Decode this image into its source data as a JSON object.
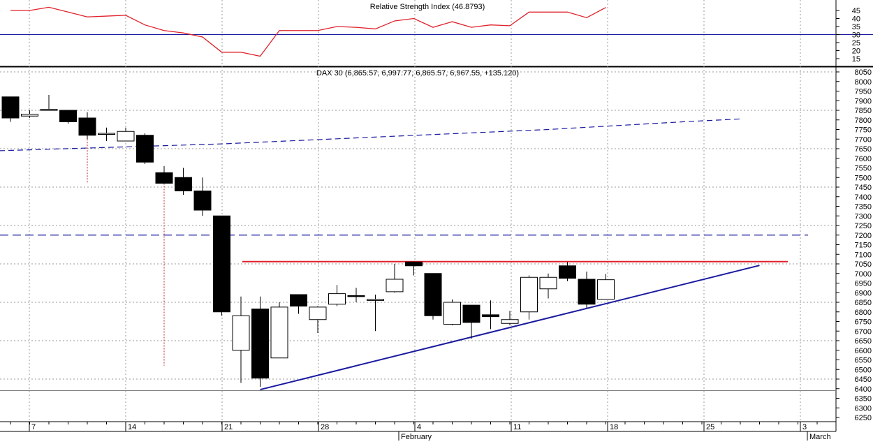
{
  "rsi_panel": {
    "title": "Relative Strength Index (46.8793)",
    "ticks": [
      45,
      40,
      35,
      30,
      25,
      20,
      15
    ],
    "ylim": [
      8,
      52
    ],
    "reference_level": 30,
    "line_color": "#e0202a",
    "reference_color": "#1a1aa0",
    "values": [
      45,
      45,
      47,
      44,
      41,
      41.5,
      42,
      36,
      32.5,
      31,
      28.5,
      19,
      19,
      16.5,
      32.5,
      32.5,
      32.5,
      35,
      34.5,
      33.5,
      38.5,
      40,
      34.5,
      38,
      34.5,
      36,
      35.5,
      44,
      44,
      44,
      40.5,
      46.8793
    ]
  },
  "chart_data": {
    "type": "candlestick",
    "title": "DAX 30 (6,865.57, 6,997.77, 6,865.57, 6,967.55, +135.120)",
    "ylabel": "",
    "xlabel": "",
    "ylim": [
      6220,
      8070
    ],
    "y_ticks": [
      8050,
      8000,
      7950,
      7900,
      7850,
      7800,
      7750,
      7700,
      7650,
      7600,
      7550,
      7500,
      7450,
      7400,
      7350,
      7300,
      7250,
      7200,
      7150,
      7100,
      7050,
      7000,
      6950,
      6900,
      6850,
      6800,
      6750,
      6700,
      6650,
      6600,
      6550,
      6500,
      6450,
      6400,
      6350,
      6300,
      6250
    ],
    "x_date_labels": [
      "7",
      "14",
      "21",
      "28",
      "4",
      "11",
      "18",
      "25",
      "3"
    ],
    "month_labels": [
      "February",
      "March"
    ],
    "up_color": "#ffffff",
    "down_color": "#000000",
    "candles": [
      {
        "open": 7920,
        "high": 7920,
        "low": 7790,
        "close": 7810
      },
      {
        "open": 7820,
        "high": 7850,
        "low": 7810,
        "close": 7830
      },
      {
        "open": 7855,
        "high": 7930,
        "low": 7850,
        "close": 7855
      },
      {
        "open": 7850,
        "high": 7850,
        "low": 7780,
        "close": 7790
      },
      {
        "open": 7810,
        "high": 7840,
        "low": 7700,
        "close": 7720
      },
      {
        "open": 7730,
        "high": 7760,
        "low": 7690,
        "close": 7730
      },
      {
        "open": 7690,
        "high": 7760,
        "low": 7690,
        "close": 7740
      },
      {
        "open": 7720,
        "high": 7730,
        "low": 7570,
        "close": 7580
      },
      {
        "open": 7525,
        "high": 7560,
        "low": 7470,
        "close": 7470
      },
      {
        "open": 7500,
        "high": 7550,
        "low": 7410,
        "close": 7430
      },
      {
        "open": 7430,
        "high": 7500,
        "low": 7300,
        "close": 7330
      },
      {
        "open": 7300,
        "high": 7300,
        "low": 6780,
        "close": 6800
      },
      {
        "open": 6600,
        "high": 6880,
        "low": 6430,
        "close": 6780
      },
      {
        "open": 6815,
        "high": 6880,
        "low": 6410,
        "close": 6455
      },
      {
        "open": 6560,
        "high": 6850,
        "low": 6560,
        "close": 6825
      },
      {
        "open": 6890,
        "high": 6890,
        "low": 6790,
        "close": 6830
      },
      {
        "open": 6760,
        "high": 6830,
        "low": 6690,
        "close": 6825
      },
      {
        "open": 6840,
        "high": 6940,
        "low": 6830,
        "close": 6895
      },
      {
        "open": 6885,
        "high": 6925,
        "low": 6850,
        "close": 6880
      },
      {
        "open": 6865,
        "high": 6890,
        "low": 6700,
        "close": 6865
      },
      {
        "open": 6905,
        "high": 7050,
        "low": 6900,
        "close": 6970
      },
      {
        "open": 7060,
        "high": 7060,
        "low": 6990,
        "close": 7040
      },
      {
        "open": 7000,
        "high": 7000,
        "low": 6760,
        "close": 6780
      },
      {
        "open": 6735,
        "high": 6865,
        "low": 6730,
        "close": 6850
      },
      {
        "open": 6835,
        "high": 6835,
        "low": 6660,
        "close": 6745
      },
      {
        "open": 6785,
        "high": 6860,
        "low": 6710,
        "close": 6775
      },
      {
        "open": 6740,
        "high": 6805,
        "low": 6730,
        "close": 6760
      },
      {
        "open": 6800,
        "high": 6990,
        "low": 6760,
        "close": 6980
      },
      {
        "open": 6920,
        "high": 7000,
        "low": 6870,
        "close": 6980
      },
      {
        "open": 7040,
        "high": 7060,
        "low": 6960,
        "close": 6975
      },
      {
        "open": 6970,
        "high": 7010,
        "low": 6820,
        "close": 6840
      },
      {
        "open": 6865.57,
        "high": 6997.77,
        "low": 6865.57,
        "close": 6967.55
      }
    ],
    "annotations": {
      "resistance_level": 7062,
      "support_trendline": [
        [
          13,
          6395
        ],
        [
          39,
          7042
        ]
      ],
      "long_dashed_curve": [
        [
          -2,
          7635
        ],
        [
          11,
          7675
        ],
        [
          20,
          7715
        ],
        [
          28,
          7750
        ],
        [
          35,
          7790
        ],
        [
          38,
          7805
        ]
      ],
      "horizontal_dashed_level": 7200,
      "low_reference_level": 6390,
      "vertical_markers": [
        {
          "index": 4,
          "from": 7700,
          "to": 7470
        },
        {
          "index": 8,
          "from": 7470,
          "to": 6520
        }
      ],
      "resistance_color": "#e0202a",
      "trendline_color": "#1a1aa0",
      "dashed_color": "#1a1aa0",
      "marker_color": "#c02020"
    }
  }
}
